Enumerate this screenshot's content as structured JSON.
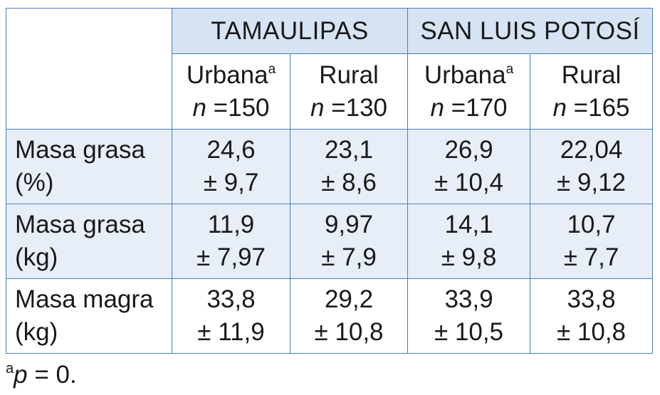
{
  "table": {
    "states": [
      "TAMAULIPAS",
      "SAN LUIS POTOSÍ"
    ],
    "groups": [
      {
        "label": "Urbana",
        "mark": "a",
        "n_symbol": "n",
        "n_text": " =150"
      },
      {
        "label": "Rural",
        "mark": "",
        "n_symbol": "n",
        "n_text": " =130"
      },
      {
        "label": "Urbana",
        "mark": "a",
        "n_symbol": "n",
        "n_text": " =170"
      },
      {
        "label": "Rural",
        "mark": "",
        "n_symbol": "n",
        "n_text": " =165"
      }
    ],
    "rows": [
      {
        "label_line1": "Masa grasa",
        "label_line2": "(%)",
        "cells": [
          {
            "mean": "24,6",
            "sd": "± 9,7"
          },
          {
            "mean": "23,1",
            "sd": "± 8,6"
          },
          {
            "mean": "26,9",
            "sd": "± 10,4"
          },
          {
            "mean": "22,04",
            "sd": "± 9,12"
          }
        ]
      },
      {
        "label_line1": "Masa grasa",
        "label_line2": "(kg)",
        "cells": [
          {
            "mean": "11,9",
            "sd": "± 7,97"
          },
          {
            "mean": "9,97",
            "sd": "± 7,9"
          },
          {
            "mean": "14,1",
            "sd": "± 9,8"
          },
          {
            "mean": "10,7",
            "sd": "± 7,7"
          }
        ]
      },
      {
        "label_line1": "Masa magra",
        "label_line2": "(kg)",
        "cells": [
          {
            "mean": "33,8",
            "sd": "± 11,9"
          },
          {
            "mean": "29,2",
            "sd": "± 10,8"
          },
          {
            "mean": "33,9",
            "sd": "± 10,5"
          },
          {
            "mean": "33,8",
            "sd": "± 10,8"
          }
        ]
      }
    ]
  },
  "footnote": {
    "mark": "a",
    "symbol": "p",
    "text": " = 0."
  },
  "colors": {
    "border": "#4a7fc1",
    "header_fill": "#d6e3f3",
    "shaded_row_fill": "#e7eef8",
    "text": "#1a1a1a"
  }
}
